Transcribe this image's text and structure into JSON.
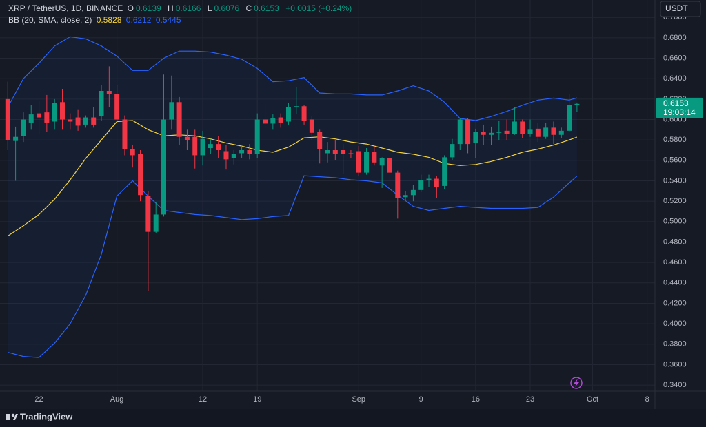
{
  "chart_data": {
    "type": "candlestick",
    "title": "XRP / TetherUS, 1D, BINANCE",
    "ohlc_labels": [
      "O",
      "H",
      "L",
      "C"
    ],
    "change": "+0.0015 (+0.24%)",
    "currency": "USDT",
    "countdown": "19:03:14",
    "brand": "TradingView",
    "up_color": "#089981",
    "down_color": "#f23645",
    "candles": {
      "x": [
        "07-18",
        "07-19",
        "07-20",
        "07-21",
        "07-22",
        "07-23",
        "07-24",
        "07-25",
        "07-26",
        "07-27",
        "07-28",
        "07-29",
        "07-30",
        "07-31",
        "08-01",
        "08-02",
        "08-03",
        "08-04",
        "08-05",
        "08-06",
        "08-07",
        "08-08",
        "08-09",
        "08-10",
        "08-11",
        "08-12",
        "08-13",
        "08-14",
        "08-15",
        "08-16",
        "08-17",
        "08-18",
        "08-19",
        "08-20",
        "08-21",
        "08-22",
        "08-23",
        "08-24",
        "08-25",
        "08-26",
        "08-27",
        "08-28",
        "08-29",
        "08-30",
        "08-31",
        "09-01",
        "09-02",
        "09-03",
        "09-04",
        "09-05",
        "09-06",
        "09-07",
        "09-08",
        "09-09",
        "09-10",
        "09-11",
        "09-12",
        "09-13",
        "09-14",
        "09-15",
        "09-16",
        "09-17",
        "09-18",
        "09-19",
        "09-20",
        "09-21",
        "09-22",
        "09-23",
        "09-24",
        "09-25",
        "09-26",
        "09-27",
        "09-28",
        "09-29"
      ],
      "open": [
        0.62,
        0.579,
        0.584,
        0.597,
        0.606,
        0.607,
        0.598,
        0.617,
        0.6,
        0.602,
        0.595,
        0.602,
        0.603,
        0.628,
        0.625,
        0.6,
        0.571,
        0.566,
        0.525,
        0.49,
        0.507,
        0.6,
        0.617,
        0.583,
        0.583,
        0.565,
        0.572,
        0.576,
        0.569,
        0.562,
        0.567,
        0.57,
        0.566,
        0.6,
        0.596,
        0.602,
        0.598,
        0.612,
        0.613,
        0.6,
        0.588,
        0.567,
        0.57,
        0.57,
        0.567,
        0.569,
        0.548,
        0.568,
        0.555,
        0.562,
        0.548,
        0.524,
        0.526,
        0.531,
        0.541,
        0.542,
        0.535,
        0.563,
        0.576,
        0.6,
        0.577,
        0.588,
        0.585,
        0.587,
        0.589,
        0.586,
        0.598,
        0.586,
        0.591,
        0.583,
        0.592,
        0.585,
        0.589,
        0.6139
      ],
      "high": [
        0.637,
        0.593,
        0.607,
        0.614,
        0.618,
        0.624,
        0.62,
        0.63,
        0.606,
        0.61,
        0.604,
        0.612,
        0.634,
        0.652,
        0.634,
        0.604,
        0.575,
        0.57,
        0.53,
        0.519,
        0.644,
        0.643,
        0.622,
        0.59,
        0.59,
        0.589,
        0.581,
        0.584,
        0.575,
        0.57,
        0.574,
        0.576,
        0.606,
        0.614,
        0.605,
        0.606,
        0.616,
        0.632,
        0.614,
        0.603,
        0.59,
        0.578,
        0.58,
        0.576,
        0.57,
        0.574,
        0.572,
        0.575,
        0.563,
        0.565,
        0.55,
        0.53,
        0.536,
        0.546,
        0.546,
        0.545,
        0.565,
        0.581,
        0.601,
        0.601,
        0.591,
        0.595,
        0.593,
        0.599,
        0.6,
        0.612,
        0.6,
        0.6,
        0.597,
        0.597,
        0.598,
        0.592,
        0.625,
        0.6166
      ],
      "low": [
        0.57,
        0.54,
        0.578,
        0.59,
        0.585,
        0.588,
        0.59,
        0.59,
        0.59,
        0.589,
        0.592,
        0.592,
        0.599,
        0.612,
        0.597,
        0.565,
        0.553,
        0.52,
        0.432,
        0.489,
        0.505,
        0.59,
        0.575,
        0.57,
        0.552,
        0.555,
        0.566,
        0.562,
        0.551,
        0.556,
        0.562,
        0.561,
        0.562,
        0.59,
        0.59,
        0.592,
        0.595,
        0.605,
        0.595,
        0.58,
        0.557,
        0.558,
        0.56,
        0.547,
        0.562,
        0.545,
        0.546,
        0.555,
        0.533,
        0.54,
        0.503,
        0.52,
        0.52,
        0.529,
        0.534,
        0.523,
        0.532,
        0.56,
        0.57,
        0.567,
        0.562,
        0.575,
        0.575,
        0.58,
        0.58,
        0.585,
        0.582,
        0.583,
        0.578,
        0.581,
        0.576,
        0.582,
        0.588,
        0.6076
      ],
      "close": [
        0.58,
        0.583,
        0.6,
        0.605,
        0.602,
        0.597,
        0.616,
        0.6,
        0.598,
        0.594,
        0.602,
        0.595,
        0.628,
        0.625,
        0.6,
        0.571,
        0.565,
        0.526,
        0.49,
        0.507,
        0.6,
        0.617,
        0.583,
        0.58,
        0.565,
        0.581,
        0.576,
        0.57,
        0.561,
        0.566,
        0.57,
        0.566,
        0.6,
        0.596,
        0.601,
        0.597,
        0.612,
        0.613,
        0.599,
        0.587,
        0.571,
        0.57,
        0.566,
        0.566,
        0.566,
        0.548,
        0.568,
        0.558,
        0.562,
        0.548,
        0.523,
        0.526,
        0.531,
        0.541,
        0.542,
        0.534,
        0.563,
        0.576,
        0.6,
        0.576,
        0.588,
        0.585,
        0.587,
        0.588,
        0.586,
        0.598,
        0.586,
        0.59,
        0.583,
        0.592,
        0.585,
        0.589,
        0.614,
        0.6153
      ]
    },
    "bollinger": {
      "label": "BB (20, SMA, close, 2)",
      "basis_color": "#f5d33c",
      "band_color": "#2962ff",
      "x": [
        "07-18",
        "07-20",
        "07-22",
        "07-24",
        "07-26",
        "07-28",
        "07-30",
        "08-01",
        "08-03",
        "08-05",
        "08-07",
        "08-09",
        "08-11",
        "08-13",
        "08-15",
        "08-17",
        "08-19",
        "08-21",
        "08-23",
        "08-25",
        "08-27",
        "08-29",
        "08-31",
        "09-02",
        "09-04",
        "09-06",
        "09-08",
        "09-10",
        "09-12",
        "09-14",
        "09-16",
        "09-18",
        "09-20",
        "09-22",
        "09-24",
        "09-26",
        "09-28",
        "09-29"
      ],
      "basis": [
        0.486,
        0.496,
        0.507,
        0.522,
        0.541,
        0.562,
        0.58,
        0.598,
        0.599,
        0.59,
        0.584,
        0.585,
        0.584,
        0.581,
        0.577,
        0.574,
        0.57,
        0.568,
        0.573,
        0.582,
        0.583,
        0.581,
        0.578,
        0.576,
        0.572,
        0.568,
        0.566,
        0.563,
        0.557,
        0.555,
        0.556,
        0.559,
        0.563,
        0.568,
        0.571,
        0.575,
        0.58,
        0.5828
      ],
      "upper": [
        0.612,
        0.64,
        0.655,
        0.672,
        0.681,
        0.679,
        0.672,
        0.662,
        0.648,
        0.648,
        0.66,
        0.667,
        0.667,
        0.666,
        0.663,
        0.659,
        0.65,
        0.637,
        0.638,
        0.641,
        0.626,
        0.625,
        0.625,
        0.624,
        0.624,
        0.628,
        0.633,
        0.628,
        0.617,
        0.601,
        0.599,
        0.603,
        0.608,
        0.614,
        0.619,
        0.621,
        0.619,
        0.6212
      ],
      "lower": [
        0.372,
        0.368,
        0.367,
        0.381,
        0.4,
        0.428,
        0.468,
        0.525,
        0.54,
        0.525,
        0.511,
        0.509,
        0.507,
        0.506,
        0.504,
        0.502,
        0.503,
        0.505,
        0.506,
        0.545,
        0.544,
        0.543,
        0.541,
        0.54,
        0.538,
        0.526,
        0.515,
        0.511,
        0.513,
        0.515,
        0.514,
        0.513,
        0.513,
        0.513,
        0.514,
        0.524,
        0.538,
        0.5445
      ]
    },
    "xlim": [
      "07-17",
      "10-09"
    ],
    "xticks": [
      {
        "value": "07-22",
        "label": "22"
      },
      {
        "value": "08-01",
        "label": "Aug"
      },
      {
        "value": "08-12",
        "label": "12"
      },
      {
        "value": "08-19",
        "label": "19"
      },
      {
        "value": "09-01",
        "label": "Sep"
      },
      {
        "value": "09-09",
        "label": "9"
      },
      {
        "value": "09-16",
        "label": "16"
      },
      {
        "value": "09-23",
        "label": "23"
      },
      {
        "value": "10-01",
        "label": "Oct"
      },
      {
        "value": "10-08",
        "label": "8"
      }
    ],
    "ylim": [
      0.334,
      0.717
    ],
    "yticks": [
      {
        "value": 0.34,
        "label": "0.3400"
      },
      {
        "value": 0.36,
        "label": "0.3600"
      },
      {
        "value": 0.38,
        "label": "0.3800"
      },
      {
        "value": 0.4,
        "label": "0.4000"
      },
      {
        "value": 0.42,
        "label": "0.4200"
      },
      {
        "value": 0.44,
        "label": "0.4400"
      },
      {
        "value": 0.46,
        "label": "0.4600"
      },
      {
        "value": 0.48,
        "label": "0.4800"
      },
      {
        "value": 0.5,
        "label": "0.5000"
      },
      {
        "value": 0.52,
        "label": "0.5200"
      },
      {
        "value": 0.54,
        "label": "0.5400"
      },
      {
        "value": 0.56,
        "label": "0.5600"
      },
      {
        "value": 0.58,
        "label": "0.5800"
      },
      {
        "value": 0.6,
        "label": "0.6000"
      },
      {
        "value": 0.62,
        "label": "0.6200"
      },
      {
        "value": 0.64,
        "label": "0.6400"
      },
      {
        "value": 0.66,
        "label": "0.6600"
      },
      {
        "value": 0.68,
        "label": "0.6800"
      },
      {
        "value": 0.7,
        "label": "0.7000"
      }
    ],
    "grid": true
  }
}
